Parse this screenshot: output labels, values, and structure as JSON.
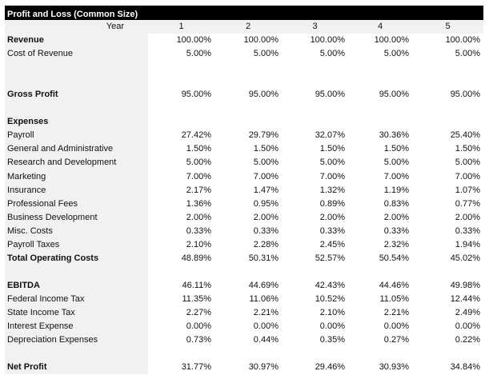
{
  "title": "Profit and Loss (Common Size)",
  "year_label": "Year",
  "years": [
    "1",
    "2",
    "3",
    "4",
    "5"
  ],
  "rows": [
    {
      "label": "Revenue",
      "bold": true,
      "values": [
        "100.00%",
        "100.00%",
        "100.00%",
        "100.00%",
        "100.00%"
      ]
    },
    {
      "label": "Cost of Revenue",
      "bold": false,
      "values": [
        "5.00%",
        "5.00%",
        "5.00%",
        "5.00%",
        "5.00%"
      ]
    },
    {
      "label": "",
      "bold": false,
      "values": [
        "",
        "",
        "",
        "",
        ""
      ]
    },
    {
      "label": "",
      "bold": false,
      "values": [
        "",
        "",
        "",
        "",
        ""
      ]
    },
    {
      "label": "Gross Profit",
      "bold": true,
      "values": [
        "95.00%",
        "95.00%",
        "95.00%",
        "95.00%",
        "95.00%"
      ]
    },
    {
      "label": "",
      "bold": false,
      "values": [
        "",
        "",
        "",
        "",
        ""
      ]
    },
    {
      "label": "Expenses",
      "bold": true,
      "values": [
        "",
        "",
        "",
        "",
        ""
      ]
    },
    {
      "label": "Payroll",
      "bold": false,
      "values": [
        "27.42%",
        "29.79%",
        "32.07%",
        "30.36%",
        "25.40%"
      ]
    },
    {
      "label": "General and Administrative",
      "bold": false,
      "values": [
        "1.50%",
        "1.50%",
        "1.50%",
        "1.50%",
        "1.50%"
      ]
    },
    {
      "label": "Research and Development",
      "bold": false,
      "values": [
        "5.00%",
        "5.00%",
        "5.00%",
        "5.00%",
        "5.00%"
      ]
    },
    {
      "label": "Marketing",
      "bold": false,
      "values": [
        "7.00%",
        "7.00%",
        "7.00%",
        "7.00%",
        "7.00%"
      ]
    },
    {
      "label": "Insurance",
      "bold": false,
      "values": [
        "2.17%",
        "1.47%",
        "1.32%",
        "1.19%",
        "1.07%"
      ]
    },
    {
      "label": "Professional Fees",
      "bold": false,
      "values": [
        "1.36%",
        "0.95%",
        "0.89%",
        "0.83%",
        "0.77%"
      ]
    },
    {
      "label": "Business Development",
      "bold": false,
      "values": [
        "2.00%",
        "2.00%",
        "2.00%",
        "2.00%",
        "2.00%"
      ]
    },
    {
      "label": "Misc. Costs",
      "bold": false,
      "values": [
        "0.33%",
        "0.33%",
        "0.33%",
        "0.33%",
        "0.33%"
      ]
    },
    {
      "label": "Payroll Taxes",
      "bold": false,
      "values": [
        "2.10%",
        "2.28%",
        "2.45%",
        "2.32%",
        "1.94%"
      ]
    },
    {
      "label": "Total Operating Costs",
      "bold": true,
      "values": [
        "48.89%",
        "50.31%",
        "52.57%",
        "50.54%",
        "45.02%"
      ]
    },
    {
      "label": "",
      "bold": false,
      "values": [
        "",
        "",
        "",
        "",
        ""
      ]
    },
    {
      "label": "EBITDA",
      "bold": true,
      "values": [
        "46.11%",
        "44.69%",
        "42.43%",
        "44.46%",
        "49.98%"
      ]
    },
    {
      "label": "Federal Income Tax",
      "bold": false,
      "values": [
        "11.35%",
        "11.06%",
        "10.52%",
        "11.05%",
        "12.44%"
      ]
    },
    {
      "label": "State Income Tax",
      "bold": false,
      "values": [
        "2.27%",
        "2.21%",
        "2.10%",
        "2.21%",
        "2.49%"
      ]
    },
    {
      "label": "Interest Expense",
      "bold": false,
      "values": [
        "0.00%",
        "0.00%",
        "0.00%",
        "0.00%",
        "0.00%"
      ]
    },
    {
      "label": "Depreciation Expenses",
      "bold": false,
      "values": [
        "0.73%",
        "0.44%",
        "0.35%",
        "0.27%",
        "0.22%"
      ]
    },
    {
      "label": "",
      "bold": false,
      "values": [
        "",
        "",
        "",
        "",
        ""
      ]
    },
    {
      "label": "Net Profit",
      "bold": true,
      "values": [
        "31.77%",
        "30.97%",
        "29.46%",
        "30.93%",
        "34.84%"
      ]
    }
  ]
}
